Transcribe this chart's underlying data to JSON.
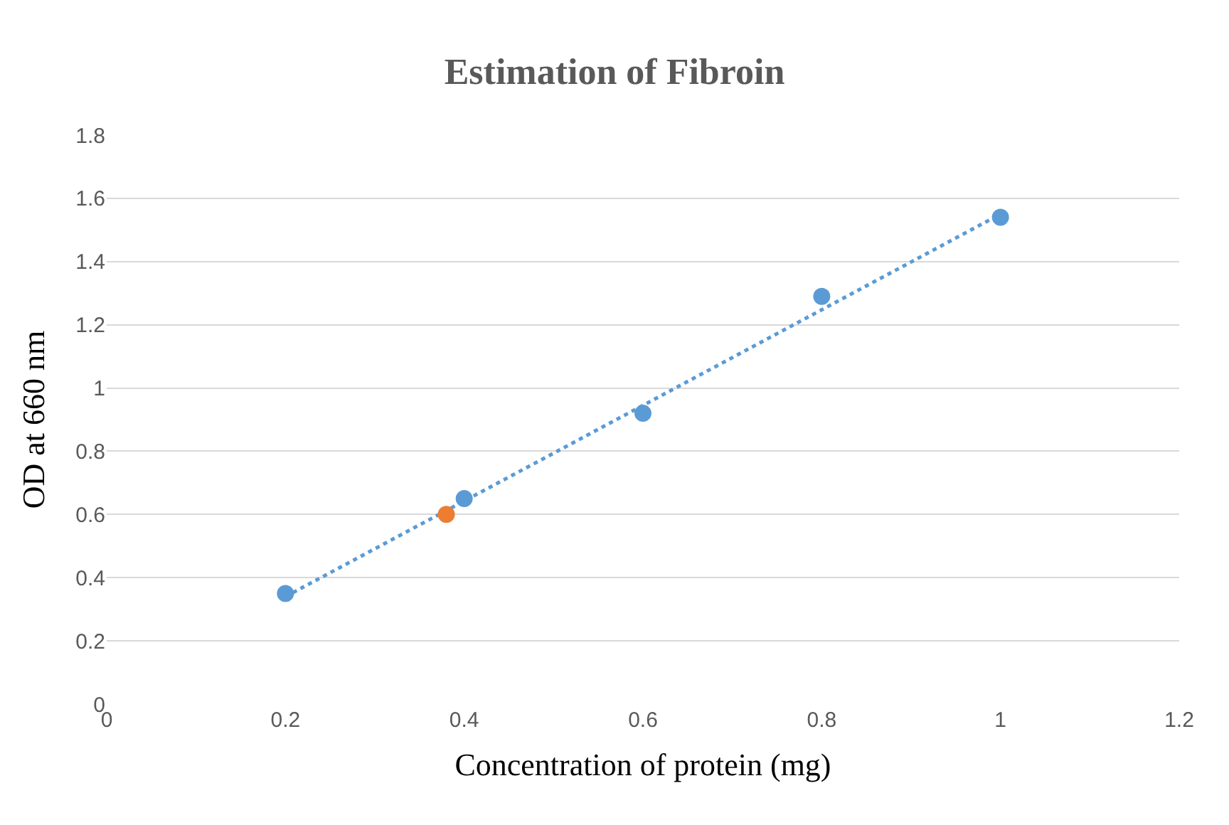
{
  "chart_data": {
    "type": "scatter",
    "title": "Estimation of Fibroin",
    "xlabel": "Concentration of protein (mg)",
    "ylabel": "OD at 660 nm",
    "xlim": [
      0,
      1.2
    ],
    "xticks": [
      0,
      0.2,
      0.4,
      0.6,
      0.8,
      1,
      1.2
    ],
    "ylim": [
      0,
      1.8
    ],
    "yticks": [
      0,
      0.2,
      0.4,
      0.6,
      0.8,
      1,
      1.2,
      1.4,
      1.6,
      1.8
    ],
    "grid": "y",
    "marker": "circle",
    "series": [
      {
        "type": "line",
        "x": [
          0.2,
          1.0
        ],
        "values": [
          0.34,
          1.55
        ],
        "color": "#5b9bd5",
        "line_style": "dotted",
        "marker": "none"
      },
      {
        "x": [
          0.2,
          0.4,
          0.6,
          0.8,
          1.0
        ],
        "values": [
          0.35,
          0.65,
          0.92,
          1.29,
          1.54
        ],
        "color": "#5b9bd5"
      },
      {
        "x": [
          0.38
        ],
        "values": [
          0.6
        ],
        "color": "#ed7d31"
      }
    ]
  }
}
